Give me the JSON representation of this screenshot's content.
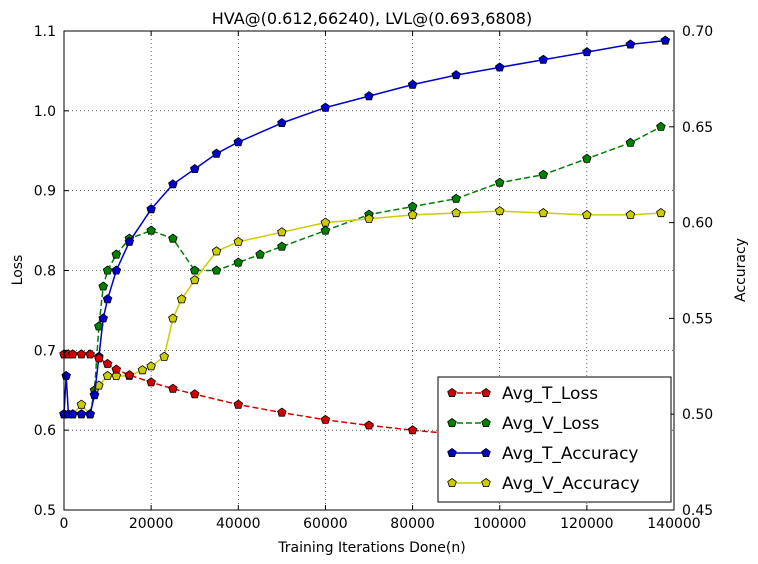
{
  "chart_data": {
    "type": "line",
    "title": "HVA@(0.612,66240), LVL@(0.693,6808)",
    "xlabel": "Training Iterations Done(n)",
    "ylabel_left": "Loss",
    "ylabel_right": "Accuracy",
    "xlim": [
      0,
      140000
    ],
    "ylim_left": [
      0.5,
      1.1
    ],
    "ylim_right": [
      0.45,
      0.7
    ],
    "x_ticks": [
      0,
      20000,
      40000,
      60000,
      80000,
      100000,
      120000,
      140000
    ],
    "x_tick_labels": [
      "0",
      "20000",
      "40000",
      "60000",
      "80000",
      "100000",
      "120000",
      "140000"
    ],
    "y_left_ticks": [
      0.5,
      0.6,
      0.7,
      0.8,
      0.9,
      1.0,
      1.1
    ],
    "y_left_tick_labels": [
      "0.5",
      "0.6",
      "0.7",
      "0.8",
      "0.9",
      "1.0",
      "1.1"
    ],
    "y_right_ticks": [
      0.45,
      0.5,
      0.55,
      0.6,
      0.65,
      0.7
    ],
    "y_right_tick_labels": [
      "0.45",
      "0.50",
      "0.55",
      "0.60",
      "0.65",
      "0.70"
    ],
    "grid": true,
    "legend_position": "lower-right",
    "series": [
      {
        "name": "Avg_T_Loss",
        "axis": "left",
        "color": "#d40000",
        "linestyle": "dashed",
        "x": [
          0,
          1000,
          2000,
          4000,
          6000,
          8000,
          10000,
          12000,
          15000,
          20000,
          25000,
          30000,
          40000,
          50000,
          60000,
          70000,
          80000,
          90000,
          100000,
          110000,
          120000,
          130000,
          137000
        ],
        "y": [
          0.695,
          0.695,
          0.695,
          0.695,
          0.695,
          0.69,
          0.683,
          0.676,
          0.669,
          0.66,
          0.652,
          0.645,
          0.632,
          0.622,
          0.613,
          0.606,
          0.6,
          0.595,
          0.59,
          0.585,
          0.58,
          0.576,
          0.572
        ]
      },
      {
        "name": "Avg_V_Loss",
        "axis": "left",
        "color": "#008000",
        "linestyle": "dashed",
        "x": [
          0,
          2000,
          4000,
          6000,
          7000,
          8000,
          9000,
          10000,
          12000,
          15000,
          20000,
          25000,
          30000,
          35000,
          40000,
          45000,
          50000,
          60000,
          70000,
          80000,
          90000,
          100000,
          110000,
          120000,
          130000,
          137000
        ],
        "y": [
          0.62,
          0.62,
          0.62,
          0.62,
          0.65,
          0.73,
          0.78,
          0.8,
          0.82,
          0.84,
          0.85,
          0.84,
          0.8,
          0.8,
          0.81,
          0.82,
          0.83,
          0.85,
          0.87,
          0.88,
          0.89,
          0.91,
          0.92,
          0.94,
          0.96,
          0.98
        ]
      },
      {
        "name": "Avg_T_Accuracy",
        "axis": "right",
        "color": "#0000cc",
        "linestyle": "solid",
        "x": [
          0,
          500,
          1000,
          2000,
          4000,
          6000,
          7000,
          8000,
          9000,
          10000,
          12000,
          15000,
          20000,
          25000,
          30000,
          35000,
          40000,
          50000,
          60000,
          70000,
          80000,
          90000,
          100000,
          110000,
          120000,
          130000,
          138000
        ],
        "y": [
          0.5,
          0.52,
          0.5,
          0.5,
          0.5,
          0.5,
          0.51,
          0.53,
          0.55,
          0.56,
          0.575,
          0.59,
          0.607,
          0.62,
          0.628,
          0.636,
          0.642,
          0.652,
          0.66,
          0.666,
          0.672,
          0.677,
          0.681,
          0.685,
          0.689,
          0.693,
          0.695
        ]
      },
      {
        "name": "Avg_V_Accuracy",
        "axis": "right",
        "color": "#cccc00",
        "linestyle": "solid",
        "x": [
          0,
          2000,
          4000,
          6000,
          7000,
          8000,
          10000,
          12000,
          15000,
          18000,
          20000,
          23000,
          25000,
          27000,
          30000,
          35000,
          40000,
          50000,
          60000,
          70000,
          80000,
          90000,
          100000,
          110000,
          120000,
          130000,
          137000
        ],
        "y": [
          0.5,
          0.5,
          0.505,
          0.5,
          0.51,
          0.515,
          0.52,
          0.52,
          0.52,
          0.523,
          0.525,
          0.53,
          0.55,
          0.56,
          0.57,
          0.585,
          0.59,
          0.595,
          0.6,
          0.602,
          0.604,
          0.605,
          0.606,
          0.605,
          0.604,
          0.604,
          0.605
        ]
      }
    ]
  }
}
